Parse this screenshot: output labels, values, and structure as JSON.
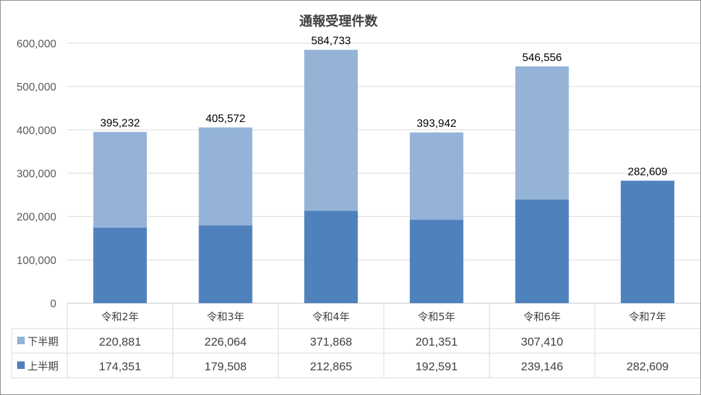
{
  "chart_data": {
    "type": "bar",
    "stacked": true,
    "title": "通報受理件数",
    "categories": [
      "令和2年",
      "令和3年",
      "令和4年",
      "令和5年",
      "令和6年",
      "令和7年"
    ],
    "series": [
      {
        "name": "上半期",
        "values": [
          174351,
          179508,
          212865,
          192591,
          239146,
          282609
        ],
        "color": "#4f81bd"
      },
      {
        "name": "下半期",
        "values": [
          220881,
          226064,
          371868,
          201351,
          307410,
          null
        ],
        "color": "#95b3d7"
      }
    ],
    "totals": [
      395232,
      405572,
      584733,
      393942,
      546556,
      282609
    ],
    "ylim": [
      0,
      600000
    ],
    "yticks": [
      0,
      100000,
      200000,
      300000,
      400000,
      500000,
      600000
    ],
    "grid": true,
    "data_table": true,
    "legend": "data-table"
  }
}
